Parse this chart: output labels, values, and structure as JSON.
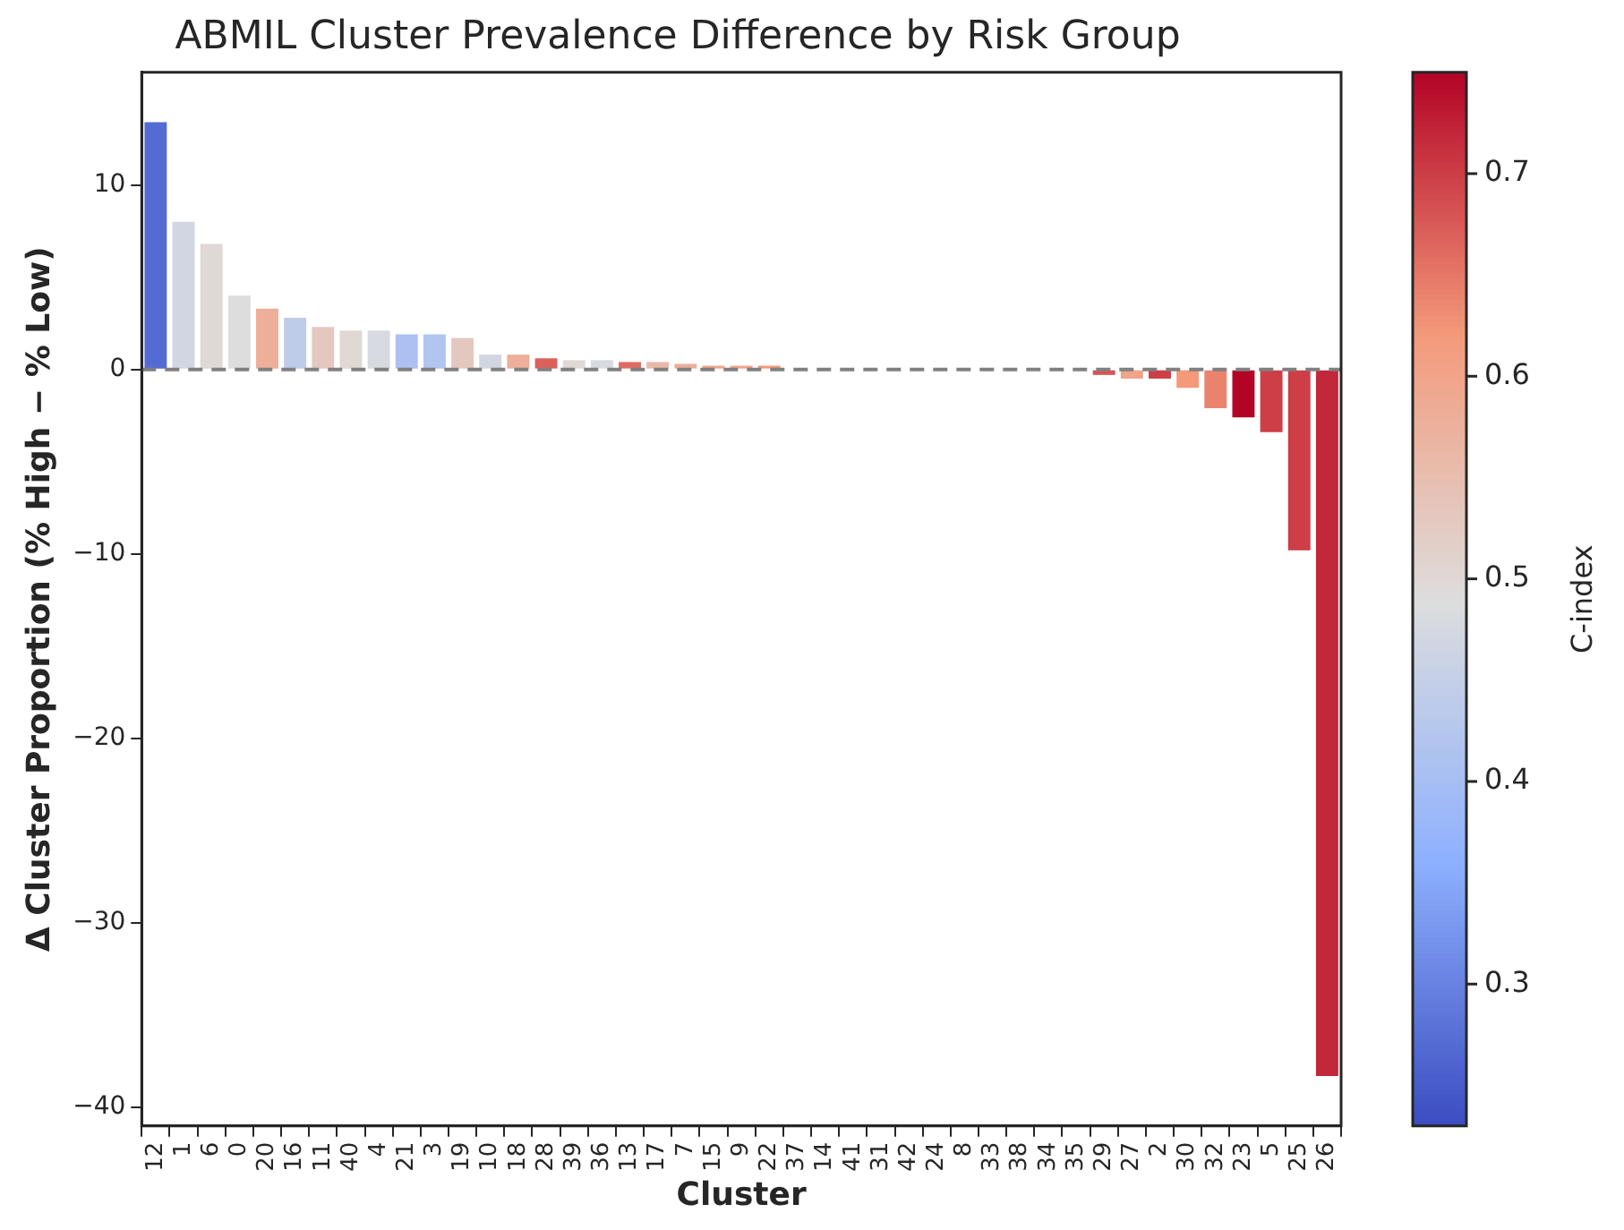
{
  "chart_data": {
    "type": "bar",
    "title": "ABMIL Cluster Prevalence Difference by Risk Group",
    "xlabel": "Cluster",
    "ylabel": "Δ Cluster Proportion (% High − % Low)",
    "clabel": "C-index",
    "categories": [
      "12",
      "1",
      "6",
      "0",
      "20",
      "16",
      "11",
      "40",
      "4",
      "21",
      "3",
      "19",
      "10",
      "18",
      "28",
      "39",
      "36",
      "13",
      "17",
      "7",
      "15",
      "9",
      "22",
      "37",
      "14",
      "41",
      "31",
      "42",
      "24",
      "8",
      "33",
      "38",
      "34",
      "35",
      "29",
      "27",
      "2",
      "30",
      "32",
      "23",
      "5",
      "25",
      "26"
    ],
    "values": [
      13.4,
      8.0,
      6.8,
      4.0,
      3.3,
      2.8,
      2.3,
      2.1,
      2.1,
      1.9,
      1.9,
      1.7,
      0.8,
      0.8,
      0.6,
      0.5,
      0.5,
      0.4,
      0.4,
      0.3,
      0.2,
      0.2,
      0.2,
      0,
      0,
      0,
      0,
      0,
      0,
      0,
      0,
      0,
      0,
      0,
      -0.3,
      -0.5,
      -0.5,
      -1.0,
      -2.1,
      -2.6,
      -3.4,
      -9.8,
      -38.3
    ],
    "cvalues": [
      0.27,
      0.47,
      0.5,
      0.49,
      0.58,
      0.44,
      0.53,
      0.5,
      0.48,
      0.41,
      0.42,
      0.53,
      0.47,
      0.58,
      0.67,
      0.5,
      0.48,
      0.66,
      0.56,
      0.58,
      0.6,
      0.6,
      0.62,
      null,
      null,
      null,
      null,
      null,
      null,
      null,
      null,
      null,
      null,
      null,
      0.68,
      0.6,
      0.7,
      0.62,
      0.64,
      0.75,
      0.7,
      0.7,
      0.72
    ],
    "clim": [
      0.23,
      0.75
    ],
    "cticks": [
      0.3,
      0.4,
      0.5,
      0.6,
      0.7
    ],
    "ylim": [
      -41,
      16.1
    ],
    "yticks": [
      {
        "value": -40,
        "label": "−40"
      },
      {
        "value": -30,
        "label": "−30"
      },
      {
        "value": -20,
        "label": "−20"
      },
      {
        "value": -10,
        "label": "−10"
      },
      0,
      10
    ],
    "ref_lines": [
      {
        "axis": "y",
        "value": 0,
        "color": "#808080",
        "line_style": "dashed"
      }
    ],
    "grid": false,
    "legend": false
  }
}
